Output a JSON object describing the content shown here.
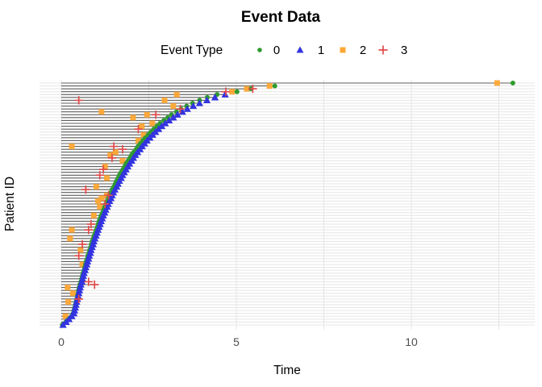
{
  "page": {
    "title": "Event Data"
  },
  "chart_data": {
    "type": "scatter",
    "title": "Event Data",
    "xlabel": "Time",
    "ylabel": "Patient ID",
    "xlim": [
      0,
      13.5
    ],
    "x_ticks": [
      0,
      5,
      10
    ],
    "x_minor_gridlines": [
      2.5,
      7.5,
      12.5
    ],
    "grid": true,
    "n_patients": 85,
    "panel_background": "#FFFFFF",
    "grid_color": "#E5E5E5",
    "timeline_color": "#5E5E5E",
    "tick_label_color": "#4D4D4D",
    "legend_position": "top",
    "legend": {
      "title": "Event Type",
      "entries": [
        {
          "label": "0",
          "marker": "circle",
          "color": "#2E9B2E"
        },
        {
          "label": "1",
          "marker": "triangle-up",
          "color": "#3333E0"
        },
        {
          "label": "2",
          "marker": "square",
          "color": "#FFA733"
        },
        {
          "label": "3",
          "marker": "plus",
          "color": "#E04B4B"
        }
      ]
    },
    "encoding_note": "patients[] is top-to-bottom; each event is [event_type, time]; each timeline spans time 0 to its last event",
    "patients": [
      {
        "events": [
          [
            2,
            12.45
          ],
          [
            0,
            12.9
          ]
        ]
      },
      {
        "events": [
          [
            2,
            5.95
          ],
          [
            0,
            6.1
          ]
        ]
      },
      {
        "events": [
          [
            2,
            5.3
          ],
          [
            0,
            5.42
          ],
          [
            3,
            5.47
          ]
        ]
      },
      {
        "events": [
          [
            3,
            4.7
          ],
          [
            2,
            4.88
          ],
          [
            0,
            5.02
          ]
        ]
      },
      {
        "events": [
          [
            2,
            3.3
          ],
          [
            0,
            4.45
          ],
          [
            1,
            4.68
          ]
        ]
      },
      {
        "events": [
          [
            0,
            4.17
          ],
          [
            1,
            4.39
          ]
        ]
      },
      {
        "events": [
          [
            3,
            0.5
          ],
          [
            2,
            2.95
          ],
          [
            0,
            3.95
          ],
          [
            1,
            4.16
          ]
        ]
      },
      {
        "events": [
          [
            0,
            3.75
          ],
          [
            1,
            3.95
          ]
        ]
      },
      {
        "events": [
          [
            2,
            3.2
          ],
          [
            0,
            3.58
          ],
          [
            1,
            3.77
          ]
        ]
      },
      {
        "events": [
          [
            3,
            3.4
          ],
          [
            0,
            3.42
          ],
          [
            1,
            3.6
          ]
        ]
      },
      {
        "events": [
          [
            2,
            1.15
          ],
          [
            0,
            3.29
          ],
          [
            1,
            3.46
          ]
        ]
      },
      {
        "events": [
          [
            2,
            2.45
          ],
          [
            3,
            2.7
          ],
          [
            0,
            3.15
          ],
          [
            1,
            3.32
          ]
        ]
      },
      {
        "events": [
          [
            2,
            2.05
          ],
          [
            0,
            3.04
          ],
          [
            1,
            3.2
          ]
        ]
      },
      {
        "events": [
          [
            0,
            2.93
          ],
          [
            1,
            3.08
          ]
        ]
      },
      {
        "events": [
          [
            2,
            2.6
          ],
          [
            0,
            2.82
          ],
          [
            1,
            2.97
          ]
        ]
      },
      {
        "events": [
          [
            2,
            2.3
          ],
          [
            0,
            2.73
          ],
          [
            1,
            2.87
          ]
        ]
      },
      {
        "events": [
          [
            3,
            2.2
          ],
          [
            0,
            2.64
          ],
          [
            1,
            2.78
          ]
        ]
      },
      {
        "events": [
          [
            0,
            2.56
          ],
          [
            1,
            2.69
          ]
        ]
      },
      {
        "events": [
          [
            2,
            2.35
          ],
          [
            0,
            2.48
          ],
          [
            1,
            2.61
          ]
        ]
      },
      {
        "events": [
          [
            0,
            2.4
          ],
          [
            1,
            2.53
          ]
        ]
      },
      {
        "events": [
          [
            2,
            2.2
          ],
          [
            0,
            2.33
          ],
          [
            1,
            2.45
          ]
        ]
      },
      {
        "events": [
          [
            0,
            2.26
          ],
          [
            1,
            2.38
          ]
        ]
      },
      {
        "events": [
          [
            2,
            0.3
          ],
          [
            3,
            1.5
          ],
          [
            0,
            2.19
          ],
          [
            1,
            2.31
          ]
        ]
      },
      {
        "events": [
          [
            3,
            1.75
          ],
          [
            0,
            2.14
          ],
          [
            1,
            2.25
          ]
        ]
      },
      {
        "events": [
          [
            2,
            1.55
          ],
          [
            0,
            2.07
          ],
          [
            1,
            2.18
          ]
        ]
      },
      {
        "events": [
          [
            2,
            1.4
          ],
          [
            0,
            2.01
          ],
          [
            1,
            2.12
          ]
        ]
      },
      {
        "events": [
          [
            3,
            1.45
          ],
          [
            0,
            1.96
          ],
          [
            1,
            2.06
          ]
        ]
      },
      {
        "events": [
          [
            2,
            1.75
          ],
          [
            0,
            1.91
          ],
          [
            1,
            2.01
          ]
        ]
      },
      {
        "events": [
          [
            0,
            1.85
          ],
          [
            1,
            1.95
          ]
        ]
      },
      {
        "events": [
          [
            2,
            1.25
          ],
          [
            0,
            1.81
          ],
          [
            1,
            1.9
          ]
        ]
      },
      {
        "events": [
          [
            3,
            1.2
          ],
          [
            0,
            1.76
          ],
          [
            1,
            1.85
          ]
        ]
      },
      {
        "events": [
          [
            0,
            1.71
          ],
          [
            1,
            1.8
          ]
        ]
      },
      {
        "events": [
          [
            3,
            1.1
          ],
          [
            0,
            1.66
          ],
          [
            1,
            1.75
          ]
        ]
      },
      {
        "events": [
          [
            2,
            1.3
          ],
          [
            0,
            1.62
          ],
          [
            1,
            1.71
          ]
        ]
      },
      {
        "events": [
          [
            0,
            1.58
          ],
          [
            1,
            1.66
          ]
        ]
      },
      {
        "events": [
          [
            0,
            1.54
          ],
          [
            1,
            1.62
          ]
        ]
      },
      {
        "events": [
          [
            2,
            1.0
          ],
          [
            0,
            1.5
          ],
          [
            1,
            1.58
          ]
        ]
      },
      {
        "events": [
          [
            3,
            0.7
          ],
          [
            0,
            1.45
          ],
          [
            1,
            1.53
          ]
        ]
      },
      {
        "events": [
          [
            0,
            1.42
          ],
          [
            1,
            1.49
          ]
        ]
      },
      {
        "events": [
          [
            2,
            1.3
          ],
          [
            3,
            1.35
          ],
          [
            0,
            1.38
          ],
          [
            1,
            1.45
          ]
        ]
      },
      {
        "events": [
          [
            2,
            1.15
          ],
          [
            0,
            1.35
          ],
          [
            1,
            1.42
          ]
        ]
      },
      {
        "events": [
          [
            2,
            1.05
          ],
          [
            0,
            1.31
          ],
          [
            1,
            1.38
          ]
        ]
      },
      {
        "events": [
          [
            3,
            1.25
          ],
          [
            0,
            1.27
          ],
          [
            1,
            1.34
          ]
        ]
      },
      {
        "events": [
          [
            2,
            1.1
          ],
          [
            0,
            1.24
          ],
          [
            1,
            1.31
          ]
        ]
      },
      {
        "events": [
          [
            0,
            1.21
          ],
          [
            1,
            1.27
          ]
        ]
      },
      {
        "events": [
          [
            0,
            1.18
          ],
          [
            1,
            1.24
          ]
        ]
      },
      {
        "events": [
          [
            2,
            0.93
          ],
          [
            0,
            1.14
          ],
          [
            1,
            1.2
          ]
        ]
      },
      {
        "events": [
          [
            0,
            1.11
          ],
          [
            1,
            1.17
          ]
        ]
      },
      {
        "events": [
          [
            0,
            1.08
          ],
          [
            1,
            1.14
          ]
        ]
      },
      {
        "events": [
          [
            3,
            0.85
          ],
          [
            0,
            1.05
          ],
          [
            1,
            1.11
          ]
        ]
      },
      {
        "events": [
          [
            0,
            1.03
          ],
          [
            1,
            1.08
          ]
        ]
      },
      {
        "events": [
          [
            2,
            0.3
          ],
          [
            3,
            0.78
          ],
          [
            0,
            1.0
          ],
          [
            1,
            1.05
          ]
        ]
      },
      {
        "events": [
          [
            0,
            0.97
          ],
          [
            1,
            1.02
          ]
        ]
      },
      {
        "events": [
          [
            0,
            0.94
          ],
          [
            1,
            0.99
          ]
        ]
      },
      {
        "events": [
          [
            2,
            0.25
          ],
          [
            0,
            0.91
          ],
          [
            1,
            0.96
          ]
        ]
      },
      {
        "events": [
          [
            0,
            0.88
          ],
          [
            1,
            0.93
          ]
        ]
      },
      {
        "events": [
          [
            3,
            0.6
          ],
          [
            0,
            0.86
          ],
          [
            1,
            0.91
          ]
        ]
      },
      {
        "events": [
          [
            0,
            0.84
          ],
          [
            1,
            0.88
          ]
        ]
      },
      {
        "events": [
          [
            2,
            0.55
          ],
          [
            0,
            0.81
          ],
          [
            1,
            0.85
          ]
        ]
      },
      {
        "events": [
          [
            0,
            0.79
          ],
          [
            1,
            0.83
          ]
        ]
      },
      {
        "events": [
          [
            3,
            0.5
          ],
          [
            0,
            0.76
          ],
          [
            1,
            0.8
          ]
        ]
      },
      {
        "events": [
          [
            0,
            0.74
          ],
          [
            1,
            0.78
          ]
        ]
      },
      {
        "events": [
          [
            0,
            0.71
          ],
          [
            1,
            0.75
          ]
        ]
      },
      {
        "events": [
          [
            2,
            0.6
          ],
          [
            0,
            0.69
          ],
          [
            1,
            0.73
          ]
        ]
      },
      {
        "events": [
          [
            0,
            0.67
          ],
          [
            1,
            0.7
          ]
        ]
      },
      {
        "events": [
          [
            0,
            0.65
          ],
          [
            1,
            0.68
          ]
        ]
      },
      {
        "events": [
          [
            0,
            0.62
          ],
          [
            1,
            0.65
          ]
        ]
      },
      {
        "events": [
          [
            0,
            0.6
          ],
          [
            1,
            0.63
          ]
        ]
      },
      {
        "events": [
          [
            0,
            0.58
          ],
          [
            1,
            0.61
          ]
        ]
      },
      {
        "events": [
          [
            0,
            0.56
          ],
          [
            1,
            0.59
          ],
          [
            3,
            0.78
          ]
        ]
      },
      {
        "events": [
          [
            0,
            0.53
          ],
          [
            1,
            0.56
          ],
          [
            3,
            0.95
          ]
        ]
      },
      {
        "events": [
          [
            2,
            0.18
          ],
          [
            0,
            0.51
          ],
          [
            1,
            0.54
          ]
        ]
      },
      {
        "events": [
          [
            0,
            0.49
          ],
          [
            1,
            0.52
          ]
        ]
      },
      {
        "events": [
          [
            2,
            0.33
          ],
          [
            0,
            0.48
          ],
          [
            1,
            0.5
          ]
        ]
      },
      {
        "events": [
          [
            0,
            0.46
          ],
          [
            1,
            0.48
          ]
        ]
      },
      {
        "events": [
          [
            0,
            0.44
          ],
          [
            1,
            0.46
          ],
          [
            3,
            0.5
          ]
        ]
      },
      {
        "events": [
          [
            2,
            0.2
          ],
          [
            0,
            0.42
          ],
          [
            1,
            0.44
          ]
        ]
      },
      {
        "events": [
          [
            0,
            0.4
          ],
          [
            1,
            0.42
          ]
        ]
      },
      {
        "events": [
          [
            0,
            0.38
          ],
          [
            1,
            0.4
          ]
        ]
      },
      {
        "events": [
          [
            0,
            0.36
          ],
          [
            1,
            0.38
          ]
        ]
      },
      {
        "events": [
          [
            0,
            0.34
          ],
          [
            1,
            0.36
          ]
        ]
      },
      {
        "events": [
          [
            2,
            0.12
          ],
          [
            0,
            0.29
          ],
          [
            1,
            0.3
          ]
        ]
      },
      {
        "events": [
          [
            0,
            0.21
          ],
          [
            1,
            0.22
          ]
        ]
      },
      {
        "events": [
          [
            0,
            0.13
          ],
          [
            1,
            0.14
          ]
        ]
      },
      {
        "events": [
          [
            0,
            0.03
          ],
          [
            1,
            0.05
          ]
        ]
      }
    ]
  }
}
